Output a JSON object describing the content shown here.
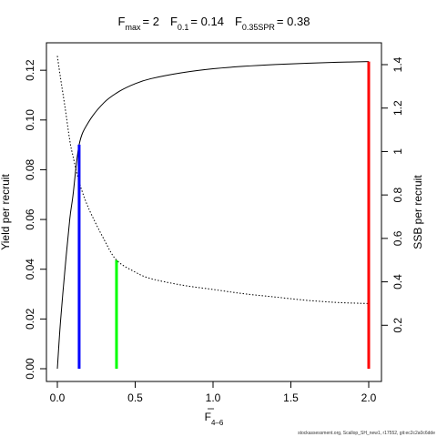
{
  "chart_data": {
    "type": "line",
    "title": {
      "fmax": {
        "sym": "F",
        "sub": "max",
        "val": "= 2"
      },
      "f01": {
        "sym": "F",
        "sub": "0.1",
        "val": "= 0.14"
      },
      "f035": {
        "sym": "F",
        "sub": "0.35SPR",
        "val": "= 0.38"
      }
    },
    "xlabel": {
      "main": "F",
      "sub": "4–6"
    },
    "ylabel_left": "Yield per recruit",
    "ylabel_right": "SSB per recruit",
    "xlim": [
      0,
      2
    ],
    "ylim_left": [
      0,
      0.125
    ],
    "ylim_right": [
      0,
      1.45
    ],
    "x_ticks": [
      {
        "value": 0,
        "label": "0.0"
      },
      {
        "value": 0.5,
        "label": "0.5"
      },
      {
        "value": 1,
        "label": "1.0"
      },
      {
        "value": 1.5,
        "label": "1.5"
      },
      {
        "value": 2,
        "label": "2.0"
      }
    ],
    "y_left_ticks": [
      {
        "value": 0,
        "label": "0.00"
      },
      {
        "value": 0.02,
        "label": "0.02"
      },
      {
        "value": 0.04,
        "label": "0.04"
      },
      {
        "value": 0.06,
        "label": "0.06"
      },
      {
        "value": 0.08,
        "label": "0.08"
      },
      {
        "value": 0.1,
        "label": "0.10"
      },
      {
        "value": 0.12,
        "label": "0.12"
      }
    ],
    "y_right_ticks": [
      {
        "value": 0.2,
        "label": "0.2"
      },
      {
        "value": 0.4,
        "label": "0.4"
      },
      {
        "value": 0.6,
        "label": "0.6"
      },
      {
        "value": 0.8,
        "label": "0.8"
      },
      {
        "value": 1.0,
        "label": "1"
      },
      {
        "value": 1.2,
        "label": "1.2"
      },
      {
        "value": 1.4,
        "label": "1.4"
      }
    ],
    "series": [
      {
        "axis": "left",
        "style": "solid",
        "color": "#000000",
        "x": [
          0,
          0.02,
          0.05,
          0.08,
          0.1,
          0.14,
          0.2,
          0.3,
          0.4,
          0.5,
          0.6,
          0.8,
          1.0,
          1.2,
          1.4,
          1.6,
          1.8,
          2.0
        ],
        "y": [
          0,
          0.0188,
          0.0407,
          0.0603,
          0.0695,
          0.0901,
          0.0991,
          0.107,
          0.1116,
          0.1146,
          0.1166,
          0.119,
          0.1206,
          0.1216,
          0.1223,
          0.1228,
          0.1232,
          0.1235
        ]
      },
      {
        "axis": "right",
        "style": "dotted",
        "color": "#000000",
        "x": [
          0,
          0.02,
          0.05,
          0.08,
          0.1,
          0.14,
          0.2,
          0.3,
          0.38,
          0.5,
          0.6,
          0.8,
          1.0,
          1.2,
          1.4,
          1.6,
          1.8,
          2.0
        ],
        "y": [
          1.44,
          1.34,
          1.2,
          1.05,
          0.98,
          0.86,
          0.74,
          0.595,
          0.5,
          0.445,
          0.415,
          0.385,
          0.365,
          0.345,
          0.33,
          0.315,
          0.305,
          0.3
        ]
      }
    ],
    "reference_lines": [
      {
        "x": 0.14,
        "y": 0.0901,
        "axis": "left",
        "color": "#0000ff"
      },
      {
        "x": 0.38,
        "y": 0.5,
        "axis": "right",
        "color": "#00ff00"
      },
      {
        "x": 2.0,
        "y": 0.1235,
        "axis": "left",
        "color": "#ff0000"
      }
    ]
  },
  "footer": "stockassessment.org, Scallop_SH_new1, r17552, git:ec2c2a0c6dde"
}
